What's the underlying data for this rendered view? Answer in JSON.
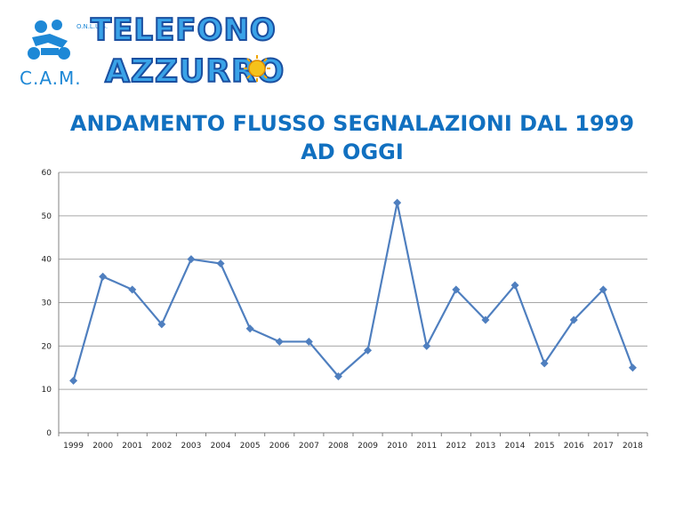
{
  "logo": {
    "org_abbrev": "C.A.M.",
    "status": "O.N.L.U.S.",
    "name_line1": "TELEFONO",
    "name_line2": "AZZURRO"
  },
  "title": "ANDAMENTO FLUSSO SEGNALAZIONI DAL 1999 AD OGGI",
  "colors": {
    "line": "#4f7fbf",
    "title": "#1170c0",
    "grid": "#a6a6a6"
  },
  "chart_data": {
    "type": "line",
    "title": "ANDAMENTO FLUSSO SEGNALAZIONI DAL 1999 AD OGGI",
    "categories": [
      "1999",
      "2000",
      "2001",
      "2002",
      "2003",
      "2004",
      "2005",
      "2006",
      "2007",
      "2008",
      "2009",
      "2010",
      "2011",
      "2012",
      "2013",
      "2014",
      "2015",
      "2016",
      "2017",
      "2018"
    ],
    "values": [
      12,
      36,
      33,
      25,
      40,
      39,
      24,
      21,
      21,
      13,
      19,
      53,
      20,
      33,
      26,
      34,
      16,
      26,
      33,
      15
    ],
    "ylim": [
      0,
      60
    ],
    "yticks": [
      0,
      10,
      20,
      30,
      40,
      50,
      60
    ],
    "marker": "diamond",
    "grid": true
  }
}
